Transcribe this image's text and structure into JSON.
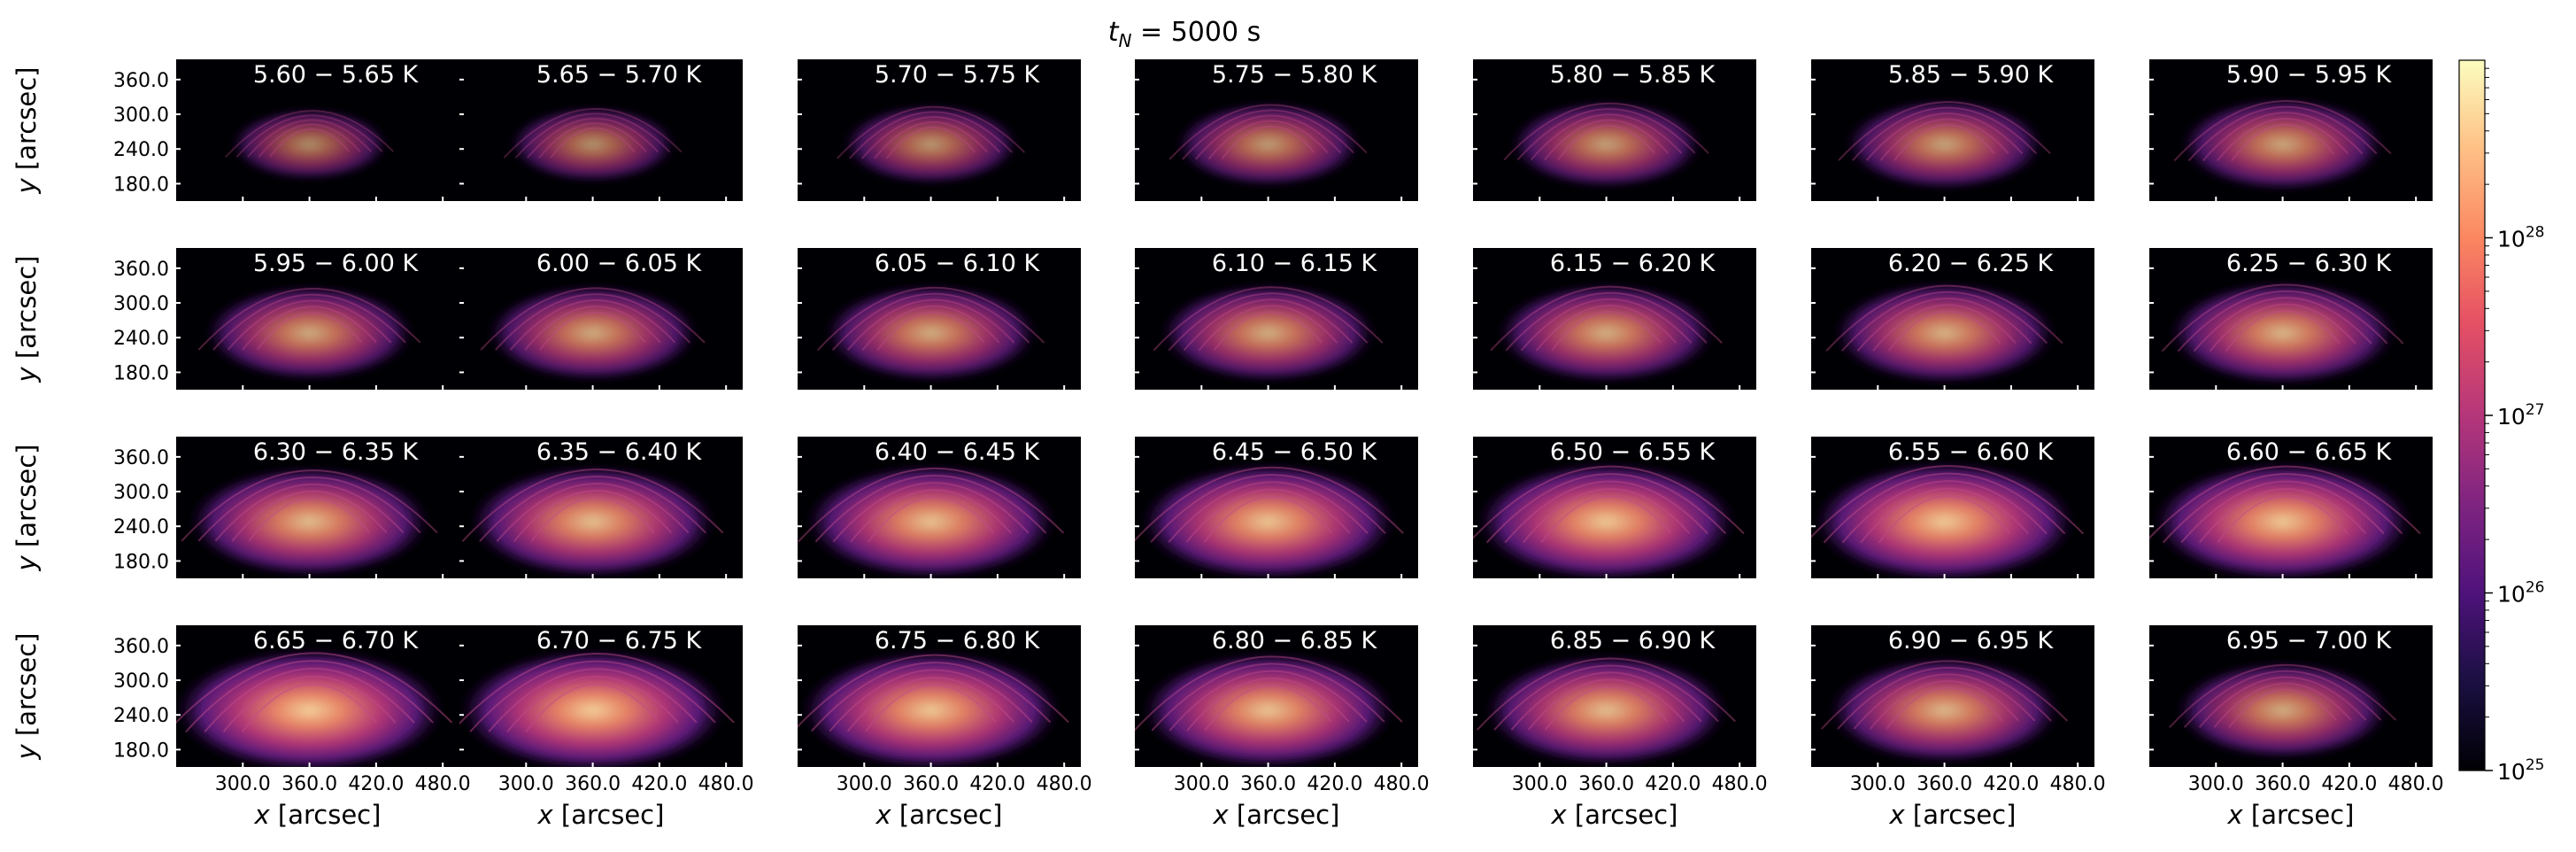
{
  "figure": {
    "title_prefix": "t",
    "title_sub": "N",
    "title_value": " = 5000 s"
  },
  "chart_data": {
    "type": "heatmap",
    "layout": {
      "rows": 4,
      "cols": 7
    },
    "xlabel_var": "x",
    "xlabel_unit": " [arcsec]",
    "ylabel_var": "y",
    "ylabel_unit": " [arcsec]",
    "x_ticks": [
      "300.0",
      "360.0",
      "420.0",
      "480.0"
    ],
    "x_tick_values": [
      300,
      360,
      420,
      480
    ],
    "xlim": [
      240,
      495
    ],
    "y_ticks": [
      "360.0",
      "300.0",
      "240.0",
      "180.0"
    ],
    "y_tick_values": [
      360,
      300,
      240,
      180
    ],
    "ylim": [
      150,
      395
    ],
    "colormap": "magma",
    "colorbar": {
      "scale": "log",
      "range": [
        1e+25,
        1e+29
      ],
      "tick_values": [
        1e+25,
        1e+26,
        1e+27,
        1e+28
      ],
      "tick_base": "10",
      "tick_exponents": [
        "25",
        "26",
        "27",
        "28"
      ]
    },
    "panels": [
      {
        "label": "5.60 − 5.65 K",
        "intensity": 0.38
      },
      {
        "label": "5.65 − 5.70 K",
        "intensity": 0.42
      },
      {
        "label": "5.70 − 5.75 K",
        "intensity": 0.46
      },
      {
        "label": "5.75 − 5.80 K",
        "intensity": 0.5
      },
      {
        "label": "5.80 − 5.85 K",
        "intensity": 0.53
      },
      {
        "label": "5.85 − 5.90 K",
        "intensity": 0.56
      },
      {
        "label": "5.90 − 5.95 K",
        "intensity": 0.58
      },
      {
        "label": "5.95 − 6.00 K",
        "intensity": 0.6
      },
      {
        "label": "6.00 − 6.05 K",
        "intensity": 0.61
      },
      {
        "label": "6.05 − 6.10 K",
        "intensity": 0.62
      },
      {
        "label": "6.10 − 6.15 K",
        "intensity": 0.63
      },
      {
        "label": "6.15 − 6.20 K",
        "intensity": 0.64
      },
      {
        "label": "6.20 − 6.25 K",
        "intensity": 0.66
      },
      {
        "label": "6.25 − 6.30 K",
        "intensity": 0.68
      },
      {
        "label": "6.30 − 6.35 K",
        "intensity": 0.74
      },
      {
        "label": "6.35 − 6.40 K",
        "intensity": 0.76
      },
      {
        "label": "6.40 − 6.45 K",
        "intensity": 0.78
      },
      {
        "label": "6.45 − 6.50 K",
        "intensity": 0.8
      },
      {
        "label": "6.50 − 6.55 K",
        "intensity": 0.82
      },
      {
        "label": "6.55 − 6.60 K",
        "intensity": 0.83
      },
      {
        "label": "6.60 − 6.65 K",
        "intensity": 0.82
      },
      {
        "label": "6.65 − 6.70 K",
        "intensity": 0.86
      },
      {
        "label": "6.70 − 6.75 K",
        "intensity": 0.85
      },
      {
        "label": "6.75 − 6.80 K",
        "intensity": 0.82
      },
      {
        "label": "6.80 − 6.85 K",
        "intensity": 0.79
      },
      {
        "label": "6.85 − 6.90 K",
        "intensity": 0.75
      },
      {
        "label": "6.90 − 6.95 K",
        "intensity": 0.7
      },
      {
        "label": "6.95 − 7.00 K",
        "intensity": 0.62
      }
    ]
  }
}
